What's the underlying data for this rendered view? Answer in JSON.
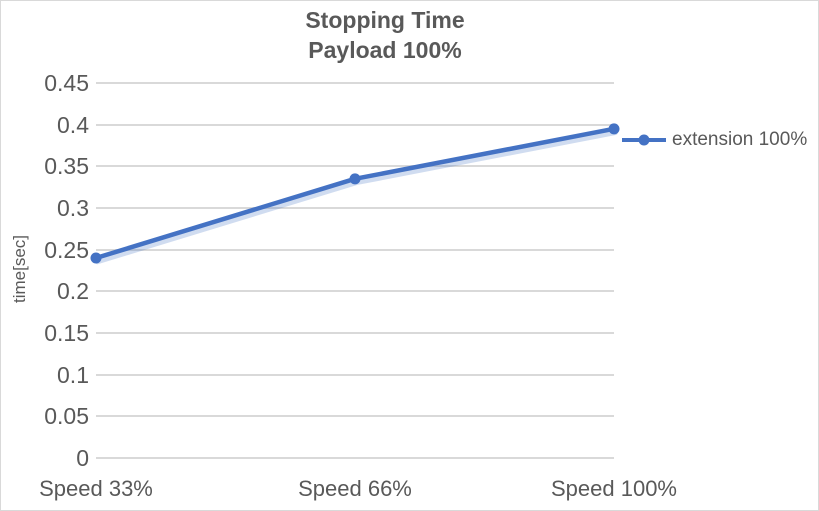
{
  "chart_data": {
    "type": "line",
    "title": "Stopping Time Payload 100%",
    "title_lines": [
      "Stopping Time",
      "Payload 100%"
    ],
    "categories": [
      "Speed 33%",
      "Speed 66%",
      "Speed 100%"
    ],
    "series": [
      {
        "name": "extension 100%",
        "values": [
          0.24,
          0.335,
          0.395
        ],
        "color": "#4472C4",
        "marker": "circle"
      }
    ],
    "xlabel": "",
    "ylabel": "time[sec]",
    "ylim": [
      0,
      0.45
    ],
    "ytick_step": 0.05,
    "ytick_labels": [
      "0",
      "0.05",
      "0.1",
      "0.15",
      "0.2",
      "0.25",
      "0.3",
      "0.35",
      "0.4",
      "0.45"
    ],
    "grid": true,
    "legend_position": "right-of-plot",
    "colors": {
      "series": "#4472C4",
      "gridline": "#D9D9D9",
      "axis_text": "#595959",
      "title_text": "#595959",
      "border": "#D9D9D9",
      "background": "#FFFFFF"
    }
  }
}
